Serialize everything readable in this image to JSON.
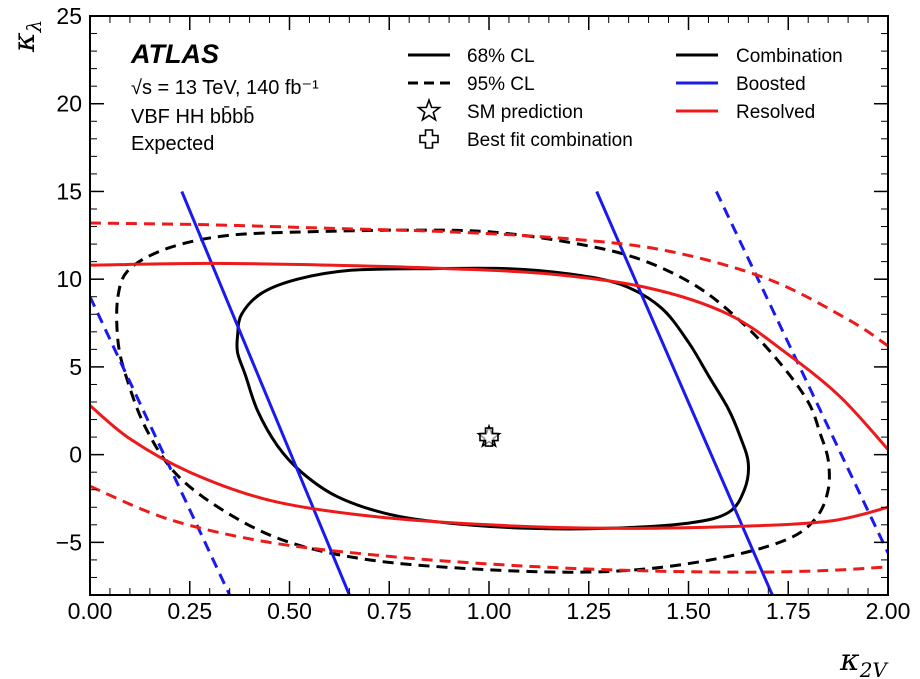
{
  "chart_data": {
    "type": "line",
    "title": "",
    "xlabel": "κ2V",
    "xlabel_main": "κ",
    "xlabel_sub": "2V",
    "ylabel": "κλ",
    "ylabel_main": "κ",
    "ylabel_sub": "λ",
    "xlim": [
      0.0,
      2.0
    ],
    "ylim": [
      -8,
      25
    ],
    "x_ticks": [
      0.0,
      0.25,
      0.5,
      0.75,
      1.0,
      1.25,
      1.5,
      1.75,
      2.0
    ],
    "x_tick_labels": [
      "0.00",
      "0.25",
      "0.50",
      "0.75",
      "1.00",
      "1.25",
      "1.50",
      "1.75",
      "2.00"
    ],
    "y_ticks": [
      -5,
      0,
      5,
      10,
      15,
      20,
      25
    ],
    "y_tick_labels": [
      "−5",
      "0",
      "5",
      "10",
      "15",
      "20",
      "25"
    ],
    "grid": false,
    "annotations": {
      "experiment": "ATLAS",
      "energy_line": "√s = 13 TeV, 140 fb⁻¹",
      "process_line": "VBF HH bb̄bb̄",
      "status_line": "Expected"
    },
    "legend": {
      "placement": "top-right",
      "style_entries": [
        {
          "label": "68% CL",
          "style": "solid"
        },
        {
          "label": "95% CL",
          "style": "dashed"
        },
        {
          "label": "SM prediction",
          "marker": "star"
        },
        {
          "label": "Best fit combination",
          "marker": "cross"
        }
      ],
      "color_entries": [
        {
          "label": "Combination",
          "color": "#000000"
        },
        {
          "label": "Boosted",
          "color": "#1a1aee"
        },
        {
          "label": "Resolved",
          "color": "#ee1a1a"
        }
      ]
    },
    "points": {
      "sm_prediction": {
        "x": 1.0,
        "y": 1.0
      },
      "best_fit_combination": {
        "x": 1.0,
        "y": 1.0
      }
    },
    "series": [
      {
        "analysis": "Combination",
        "cl": "68%",
        "color": "#000000",
        "style": "solid",
        "closed": true,
        "points": [
          [
            0.37,
            6.8
          ],
          [
            0.38,
            8.0
          ],
          [
            0.43,
            9.2
          ],
          [
            0.52,
            10.0
          ],
          [
            0.65,
            10.5
          ],
          [
            0.85,
            10.6
          ],
          [
            1.05,
            10.6
          ],
          [
            1.2,
            10.3
          ],
          [
            1.33,
            9.7
          ],
          [
            1.43,
            8.4
          ],
          [
            1.5,
            6.4
          ],
          [
            1.55,
            4.5
          ],
          [
            1.6,
            2.6
          ],
          [
            1.63,
            1.0
          ],
          [
            1.65,
            -0.5
          ],
          [
            1.64,
            -2.0
          ],
          [
            1.6,
            -3.3
          ],
          [
            1.5,
            -3.9
          ],
          [
            1.3,
            -4.2
          ],
          [
            1.1,
            -4.2
          ],
          [
            0.9,
            -3.9
          ],
          [
            0.75,
            -3.4
          ],
          [
            0.62,
            -2.4
          ],
          [
            0.53,
            -1.0
          ],
          [
            0.47,
            0.5
          ],
          [
            0.42,
            2.5
          ],
          [
            0.39,
            4.5
          ],
          [
            0.37,
            5.8
          ],
          [
            0.37,
            6.8
          ]
        ]
      },
      {
        "analysis": "Combination",
        "cl": "95%",
        "color": "#000000",
        "style": "dashed",
        "closed": true,
        "points": [
          [
            0.07,
            9.0
          ],
          [
            0.1,
            10.6
          ],
          [
            0.2,
            11.8
          ],
          [
            0.35,
            12.5
          ],
          [
            0.55,
            12.7
          ],
          [
            0.8,
            12.8
          ],
          [
            1.0,
            12.7
          ],
          [
            1.2,
            12.1
          ],
          [
            1.37,
            11.2
          ],
          [
            1.52,
            9.6
          ],
          [
            1.64,
            7.4
          ],
          [
            1.73,
            5.2
          ],
          [
            1.8,
            3.0
          ],
          [
            1.83,
            1.2
          ],
          [
            1.85,
            -0.3
          ],
          [
            1.85,
            -2.0
          ],
          [
            1.82,
            -3.6
          ],
          [
            1.75,
            -4.8
          ],
          [
            1.6,
            -5.8
          ],
          [
            1.4,
            -6.5
          ],
          [
            1.2,
            -6.7
          ],
          [
            0.95,
            -6.5
          ],
          [
            0.7,
            -6.0
          ],
          [
            0.5,
            -5.0
          ],
          [
            0.35,
            -3.4
          ],
          [
            0.22,
            -1.2
          ],
          [
            0.14,
            1.5
          ],
          [
            0.09,
            4.5
          ],
          [
            0.07,
            6.5
          ],
          [
            0.07,
            9.0
          ]
        ]
      },
      {
        "analysis": "Boosted",
        "cl": "68%",
        "color": "#1a1aee",
        "style": "solid",
        "points": [
          [
            0.23,
            15.0
          ],
          [
            0.65,
            -8.0
          ]
        ]
      },
      {
        "analysis": "Boosted",
        "cl": "68%",
        "color": "#1a1aee",
        "style": "solid",
        "points": [
          [
            1.27,
            15.0
          ],
          [
            1.71,
            -8.0
          ]
        ]
      },
      {
        "analysis": "Boosted",
        "cl": "95%",
        "color": "#1a1aee",
        "style": "dashed",
        "points": [
          [
            0.0,
            9.0
          ],
          [
            0.35,
            -8.0
          ]
        ]
      },
      {
        "analysis": "Boosted",
        "cl": "95%",
        "color": "#1a1aee",
        "style": "dashed",
        "points": [
          [
            1.57,
            15.0
          ],
          [
            2.0,
            -5.6
          ]
        ]
      },
      {
        "analysis": "Resolved",
        "cl": "68%",
        "color": "#ee1a1a",
        "style": "solid",
        "points": [
          [
            0.0,
            10.8
          ],
          [
            0.3,
            10.9
          ],
          [
            0.6,
            10.8
          ],
          [
            0.9,
            10.6
          ],
          [
            1.15,
            10.3
          ],
          [
            1.4,
            9.5
          ],
          [
            1.6,
            8.0
          ],
          [
            1.75,
            5.7
          ],
          [
            1.88,
            3.3
          ],
          [
            2.0,
            0.3
          ]
        ]
      },
      {
        "analysis": "Resolved",
        "cl": "68%",
        "color": "#ee1a1a",
        "style": "solid",
        "points": [
          [
            0.0,
            2.8
          ],
          [
            0.1,
            0.9
          ],
          [
            0.25,
            -1.0
          ],
          [
            0.45,
            -2.6
          ],
          [
            0.7,
            -3.5
          ],
          [
            1.0,
            -4.0
          ],
          [
            1.3,
            -4.2
          ],
          [
            1.6,
            -4.1
          ],
          [
            1.85,
            -3.8
          ],
          [
            2.0,
            -3.0
          ]
        ]
      },
      {
        "analysis": "Resolved",
        "cl": "95%",
        "color": "#ee1a1a",
        "style": "dashed",
        "points": [
          [
            0.0,
            13.2
          ],
          [
            0.3,
            13.1
          ],
          [
            0.6,
            12.9
          ],
          [
            0.9,
            12.7
          ],
          [
            1.2,
            12.3
          ],
          [
            1.45,
            11.6
          ],
          [
            1.7,
            10.0
          ],
          [
            1.9,
            7.7
          ],
          [
            2.0,
            6.2
          ]
        ]
      },
      {
        "analysis": "Resolved",
        "cl": "95%",
        "color": "#ee1a1a",
        "style": "dashed",
        "points": [
          [
            0.0,
            -1.8
          ],
          [
            0.2,
            -3.7
          ],
          [
            0.45,
            -5.0
          ],
          [
            0.75,
            -5.8
          ],
          [
            1.05,
            -6.3
          ],
          [
            1.35,
            -6.6
          ],
          [
            1.65,
            -6.7
          ],
          [
            1.85,
            -6.6
          ],
          [
            2.0,
            -6.4
          ]
        ]
      }
    ]
  }
}
